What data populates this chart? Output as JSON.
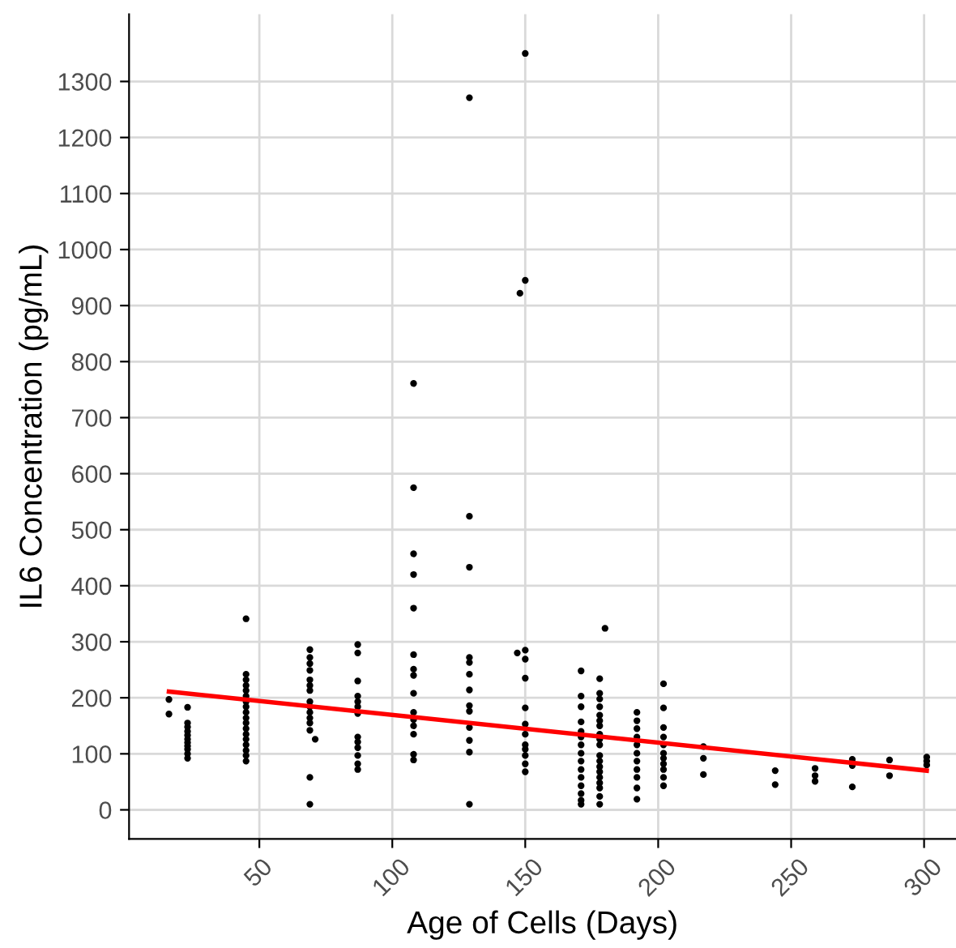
{
  "chart_data": {
    "type": "scatter",
    "xlabel": "Age of Cells (Days)",
    "ylabel": "IL6 Concentration (pg/mL)",
    "xlim": [
      1,
      312
    ],
    "ylim": [
      -52,
      1420
    ],
    "xticks": [
      50,
      100,
      150,
      200,
      250,
      300
    ],
    "yticks": [
      0,
      100,
      200,
      300,
      400,
      500,
      600,
      700,
      800,
      900,
      1000,
      1100,
      1200,
      1300
    ],
    "grid": true,
    "series": [
      {
        "marker": "circle",
        "color": "#000000",
        "x": [
          16,
          16,
          23,
          23,
          23,
          23,
          23,
          23,
          23,
          23,
          23,
          23,
          23,
          45,
          45,
          45,
          45,
          45,
          45,
          45,
          45,
          45,
          45,
          45,
          45,
          45,
          45,
          45,
          45,
          45,
          45,
          69,
          69,
          69,
          69,
          69,
          69,
          69,
          69,
          69,
          69,
          69,
          69,
          69,
          71,
          69,
          69,
          87,
          87,
          87,
          87,
          87,
          87,
          87,
          87,
          87,
          87,
          87,
          87,
          87,
          108,
          108,
          108,
          108,
          108,
          108,
          108,
          108,
          108,
          108,
          108,
          108,
          108,
          108,
          108,
          129,
          129,
          129,
          129,
          129,
          129,
          129,
          129,
          129,
          129,
          129,
          129,
          129,
          150,
          150,
          148,
          150,
          147,
          150,
          150,
          150,
          150,
          150,
          150,
          150,
          150,
          150,
          150,
          171,
          171,
          171,
          171,
          171,
          171,
          171,
          171,
          171,
          171,
          171,
          171,
          171,
          171,
          171,
          180,
          178,
          178,
          178,
          178,
          178,
          178,
          178,
          178,
          178,
          178,
          178,
          178,
          178,
          178,
          178,
          178,
          178,
          178,
          178,
          192,
          192,
          192,
          192,
          192,
          192,
          192,
          192,
          192,
          192,
          192,
          202,
          202,
          202,
          202,
          202,
          202,
          202,
          202,
          202,
          202,
          202,
          217,
          217,
          217,
          244,
          244,
          259,
          259,
          259,
          273,
          273,
          273,
          287,
          287,
          301,
          301,
          301
        ],
        "values": [
          197,
          171,
          183,
          155,
          148,
          140,
          133,
          126,
          120,
          114,
          108,
          100,
          92,
          341,
          242,
          232,
          222,
          213,
          203,
          193,
          184,
          174,
          164,
          155,
          145,
          135,
          126,
          116,
          106,
          97,
          87,
          286,
          272,
          261,
          249,
          232,
          222,
          213,
          193,
          184,
          174,
          164,
          155,
          142,
          126,
          58,
          10,
          295,
          280,
          230,
          203,
          193,
          184,
          172,
          130,
          121,
          111,
          97,
          82,
          72,
          761,
          575,
          457,
          420,
          360,
          277,
          251,
          240,
          208,
          174,
          161,
          150,
          135,
          99,
          89,
          1271,
          524,
          433,
          272,
          263,
          242,
          214,
          186,
          176,
          147,
          124,
          103,
          10,
          1350,
          945,
          922,
          285,
          280,
          269,
          235,
          182,
          153,
          135,
          116,
          108,
          97,
          82,
          68,
          248,
          203,
          184,
          157,
          140,
          130,
          116,
          101,
          87,
          72,
          58,
          43,
          29,
          17,
          10,
          324,
          234,
          208,
          198,
          184,
          169,
          159,
          150,
          135,
          126,
          116,
          97,
          87,
          77,
          68,
          58,
          48,
          39,
          24,
          10,
          174,
          159,
          145,
          130,
          116,
          101,
          87,
          72,
          58,
          39,
          19,
          225,
          182,
          147,
          130,
          116,
          101,
          92,
          82,
          72,
          58,
          43,
          113,
          92,
          63,
          70,
          45,
          74,
          61,
          51,
          90,
          79,
          41,
          89,
          61,
          94,
          87,
          80
        ]
      },
      {
        "type": "line",
        "marker": "none",
        "color": "#ff0000",
        "x": [
          16,
          301
        ],
        "values": [
          211,
          70
        ]
      }
    ]
  }
}
